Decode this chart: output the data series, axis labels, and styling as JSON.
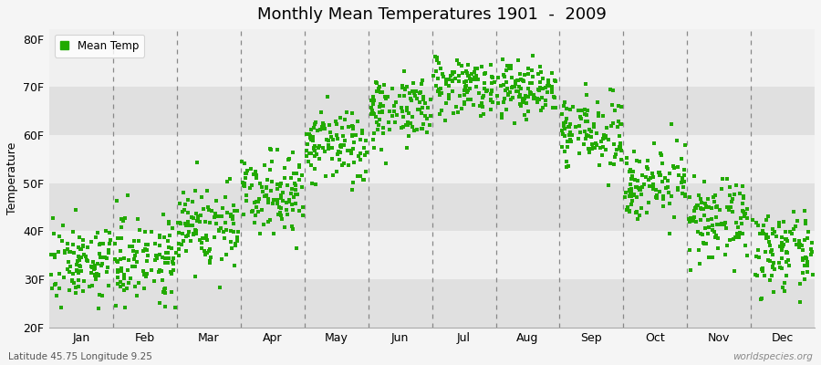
{
  "title": "Monthly Mean Temperatures 1901  -  2009",
  "ylabel": "Temperature",
  "xlabel_bottom_left": "Latitude 45.75 Longitude 9.25",
  "xlabel_bottom_right": "worldspecies.org",
  "legend_label": "Mean Temp",
  "dot_color": "#22aa00",
  "background_color": "#f5f5f5",
  "plot_bg_light": "#f0f0f0",
  "plot_bg_dark": "#e0e0e0",
  "yticks": [
    20,
    30,
    40,
    50,
    60,
    70,
    80
  ],
  "ytick_labels": [
    "20F",
    "30F",
    "40F",
    "50F",
    "60F",
    "70F",
    "80F"
  ],
  "ylim": [
    20,
    82
  ],
  "months": [
    "Jan",
    "Feb",
    "Mar",
    "Apr",
    "May",
    "Jun",
    "Jul",
    "Aug",
    "Sep",
    "Oct",
    "Nov",
    "Dec"
  ],
  "month_tick_positions": [
    0.5,
    1.5,
    2.5,
    3.5,
    4.5,
    5.5,
    6.5,
    7.5,
    8.5,
    9.5,
    10.5,
    11.5
  ],
  "month_mean_temps_F": [
    33.5,
    34.5,
    41.0,
    48.5,
    57.5,
    65.5,
    70.5,
    69.5,
    60.5,
    50.0,
    42.0,
    35.5
  ],
  "month_std_F": [
    4.0,
    4.5,
    4.5,
    4.0,
    4.0,
    3.5,
    3.0,
    3.0,
    3.5,
    3.5,
    4.0,
    4.0
  ],
  "n_years": 109,
  "seed": 7
}
